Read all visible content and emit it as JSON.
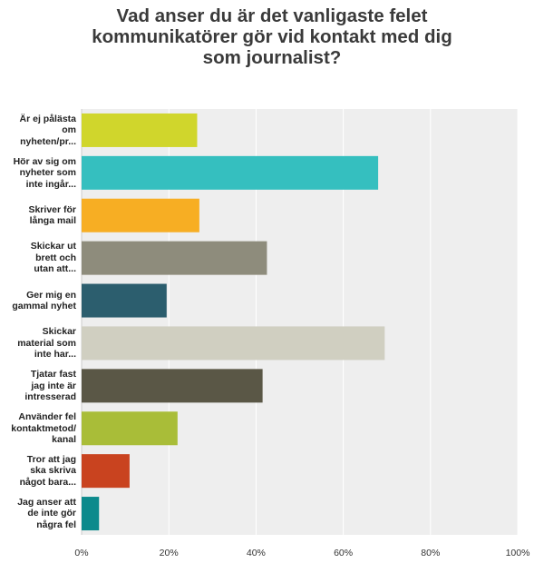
{
  "chart_data": {
    "type": "bar",
    "orientation": "horizontal",
    "title_lines": [
      "Vad anser du är det vanligaste felet",
      "kommunikatörer gör vid kontakt med dig",
      "som journalist?"
    ],
    "categories": [
      [
        "Är ej pålästa",
        "om",
        "nyheten/pr..."
      ],
      [
        "Hör av sig om",
        "nyheter som",
        "inte ingår..."
      ],
      [
        "Skriver för",
        "långa mail"
      ],
      [
        "Skickar ut",
        "brett och",
        "utan att..."
      ],
      [
        "Ger mig en",
        "gammal nyhet"
      ],
      [
        "Skickar",
        "material som",
        "inte har..."
      ],
      [
        "Tjatar fast",
        "jag inte är",
        "intresserad"
      ],
      [
        "Använder fel",
        "kontaktmetod/",
        "kanal"
      ],
      [
        "Tror att jag",
        "ska skriva",
        "något bara..."
      ],
      [
        "Jag anser att",
        "de inte gör",
        "några fel"
      ]
    ],
    "values": [
      26.5,
      68,
      27,
      42.5,
      19.5,
      69.5,
      41.5,
      22,
      11,
      4
    ],
    "unit": "%",
    "xlim": [
      0,
      100
    ],
    "ticks": [
      "0%",
      "20%",
      "40%",
      "60%",
      "80%",
      "100%"
    ],
    "grid": true,
    "colors": [
      "#d0d62c",
      "#35bfbf",
      "#f7ae23",
      "#8e8c7c",
      "#2c5e6e",
      "#d0cfc1",
      "#5a5746",
      "#a9bd38",
      "#c9431f",
      "#0c8a8c"
    ],
    "plot_background": "#eeeeee",
    "grid_color": "#ffffff"
  }
}
